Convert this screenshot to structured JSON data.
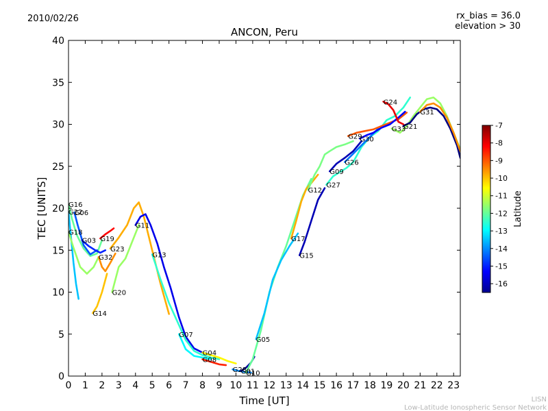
{
  "chart_data": {
    "type": "line",
    "title": "ANCON, Peru",
    "date": "2010/02/26",
    "annotation_lines": [
      "rx_bias = 36.0",
      "elevation > 30"
    ],
    "xlabel": "Time [UT]",
    "ylabel": "TEC [UNITS]",
    "xlim": [
      0,
      23.4
    ],
    "ylim": [
      0,
      40
    ],
    "xticks": [
      "0",
      "1",
      "2",
      "3",
      "4",
      "5",
      "6",
      "7",
      "8",
      "9",
      "10",
      "11",
      "12",
      "13",
      "14",
      "15",
      "16",
      "17",
      "18",
      "19",
      "20",
      "21",
      "22",
      "23"
    ],
    "yticks": [
      "0",
      "5",
      "10",
      "15",
      "20",
      "25",
      "30",
      "35",
      "40"
    ],
    "colorbar": {
      "label": "Latitude",
      "min": -16.5,
      "max": -7,
      "ticks": [
        "-7",
        "-8",
        "-9",
        "-10",
        "-11",
        "-12",
        "-13",
        "-14",
        "-15",
        "-16"
      ]
    },
    "footer": [
      "LISN",
      "Low-Latitude Ionospheric Sensor Network"
    ],
    "series": [
      {
        "name": "G16",
        "lat": -12.0,
        "x": [
          0,
          0.2,
          0.5,
          0.9,
          1.3,
          1.7,
          2.0
        ],
        "y": [
          20.5,
          18.8,
          16.8,
          15.2,
          14.3,
          14.6,
          16.2
        ]
      },
      {
        "name": "G22",
        "lat": -13.5,
        "x": [
          0,
          0.15,
          0.3,
          0.45,
          0.6
        ],
        "y": [
          19.6,
          16.5,
          13.5,
          11.0,
          9.2
        ]
      },
      {
        "name": "G06",
        "lat": -14.5,
        "x": [
          0.35,
          0.55,
          0.9,
          1.3,
          1.7
        ],
        "y": [
          19.5,
          18.0,
          15.6,
          14.5,
          15.0
        ]
      },
      {
        "name": "G18",
        "lat": -11.5,
        "x": [
          0,
          0.3,
          0.7,
          1.1,
          1.5,
          1.8
        ],
        "y": [
          17.2,
          15.3,
          13.0,
          12.2,
          13.0,
          14.2
        ]
      },
      {
        "name": "G03",
        "lat": -15.0,
        "x": [
          0.8,
          1.2,
          1.6,
          1.9,
          2.2
        ],
        "y": [
          16.2,
          15.5,
          15.0,
          14.7,
          15.0
        ]
      },
      {
        "name": "G19",
        "lat": -8.2,
        "x": [
          1.9,
          2.2,
          2.5,
          2.7
        ],
        "y": [
          16.4,
          16.9,
          17.3,
          17.6
        ]
      },
      {
        "name": "G32",
        "lat": -9.5,
        "x": [
          1.8,
          2.0,
          2.2,
          2.5,
          2.8
        ],
        "y": [
          14.2,
          13.0,
          12.5,
          13.5,
          14.6
        ]
      },
      {
        "name": "G14",
        "lat": -10.0,
        "x": [
          1.45,
          1.7,
          2.0,
          2.3
        ],
        "y": [
          7.5,
          8.3,
          10.0,
          12.2
        ]
      },
      {
        "name": "G20",
        "lat": -11.5,
        "x": [
          2.6,
          3.0,
          3.4,
          3.8,
          4.2
        ],
        "y": [
          10.0,
          13.0,
          14.0,
          16.0,
          18.0
        ]
      },
      {
        "name": "G23",
        "lat": -9.8,
        "x": [
          2.5,
          3.0,
          3.5,
          3.9,
          4.2,
          4.5,
          5.0,
          5.5,
          6.0
        ],
        "y": [
          15.2,
          16.5,
          18.0,
          20.0,
          20.7,
          19.0,
          15.0,
          11.0,
          7.4
        ]
      },
      {
        "name": "G11",
        "lat": -15.5,
        "x": [
          4.0,
          4.3,
          4.6,
          4.9,
          5.3,
          5.7,
          6.1,
          6.6,
          7.0,
          7.5,
          8.0,
          8.5
        ],
        "y": [
          18.0,
          19.0,
          19.3,
          18.0,
          15.8,
          13.0,
          10.5,
          7.0,
          4.7,
          3.3,
          2.8,
          2.5
        ]
      },
      {
        "name": "G13",
        "lat": -12.5,
        "x": [
          5.0,
          5.5,
          6.0,
          6.5,
          7.0,
          7.5,
          8.0,
          8.5,
          9.0
        ],
        "y": [
          14.5,
          11.5,
          8.7,
          6.5,
          4.3,
          3.0,
          2.5,
          2.2,
          2.0
        ]
      },
      {
        "name": "G07",
        "lat": -13.0,
        "x": [
          6.6,
          7.0,
          7.5,
          8.0,
          8.5
        ],
        "y": [
          5.0,
          3.2,
          2.4,
          2.2,
          2.0
        ]
      },
      {
        "name": "G04",
        "lat": -10.5,
        "x": [
          8.0,
          8.5,
          9.0,
          9.5,
          10.0
        ],
        "y": [
          2.8,
          2.5,
          2.2,
          1.8,
          1.5
        ]
      },
      {
        "name": "G08",
        "lat": -8.5,
        "x": [
          8.0,
          8.5,
          9.0,
          9.4
        ],
        "y": [
          2.0,
          1.7,
          1.4,
          1.3
        ]
      },
      {
        "name": "G28",
        "lat": -14.0,
        "x": [
          9.8,
          10.2,
          10.5,
          10.9
        ],
        "y": [
          0.8,
          0.6,
          0.5,
          0.4
        ]
      },
      {
        "name": "G01",
        "lat": -16.2,
        "x": [
          10.3,
          10.6,
          10.9,
          11.1
        ],
        "y": [
          0.6,
          1.0,
          1.6,
          2.3
        ]
      },
      {
        "name": "G10",
        "lat": -12.0,
        "x": [
          10.6,
          11.0,
          11.5,
          12.0,
          12.5,
          13.0,
          13.5,
          14.0,
          14.5
        ],
        "y": [
          0.4,
          2.0,
          5.5,
          10.0,
          13.0,
          15.5,
          18.5,
          21.5,
          23.5
        ]
      },
      {
        "name": "G05",
        "lat": -13.5,
        "x": [
          11.2,
          11.7,
          12.2,
          12.7,
          13.2,
          13.7
        ],
        "y": [
          4.4,
          7.5,
          11.5,
          13.8,
          15.5,
          17.0
        ]
      },
      {
        "name": "G17",
        "lat": -9.8,
        "x": [
          13.3,
          13.6,
          13.9,
          14.2,
          14.5,
          14.9
        ],
        "y": [
          16.4,
          18.5,
          20.8,
          22.3,
          23.0,
          24.0
        ]
      },
      {
        "name": "G15",
        "lat": -16.0,
        "x": [
          13.8,
          14.1,
          14.5,
          14.9,
          15.3
        ],
        "y": [
          14.4,
          16.0,
          18.5,
          21.0,
          22.4
        ]
      },
      {
        "name": "G12",
        "lat": -11.8,
        "x": [
          14.3,
          14.7,
          15.0,
          15.3,
          15.6,
          16.0,
          16.5,
          17.0
        ],
        "y": [
          22.2,
          24.0,
          25.0,
          26.4,
          26.8,
          27.3,
          27.6,
          28.0
        ]
      },
      {
        "name": "G27",
        "lat": -12.5,
        "x": [
          15.4,
          15.8,
          16.2,
          16.6,
          17.0,
          17.5,
          18.0,
          18.5,
          19.0,
          19.5,
          20.0,
          20.4
        ],
        "y": [
          22.8,
          23.8,
          24.3,
          24.8,
          25.5,
          27.3,
          28.5,
          29.2,
          30.5,
          31.0,
          32.0,
          33.2
        ]
      },
      {
        "name": "G09",
        "lat": -16.0,
        "x": [
          15.6,
          16.0,
          16.5,
          17.0,
          17.5
        ],
        "y": [
          24.4,
          25.3,
          26.0,
          26.8,
          28.0
        ]
      },
      {
        "name": "G26",
        "lat": -14.2,
        "x": [
          16.5,
          17.0,
          17.5,
          18.0,
          18.5
        ],
        "y": [
          25.5,
          26.5,
          27.5,
          28.5,
          29.5
        ]
      },
      {
        "name": "G29",
        "lat": -9.0,
        "x": [
          16.7,
          17.2,
          17.7,
          18.2,
          18.7,
          19.2,
          19.7,
          20.2
        ],
        "y": [
          28.6,
          29.0,
          29.2,
          29.4,
          29.8,
          30.2,
          30.6,
          31.4
        ]
      },
      {
        "name": "G30",
        "lat": -15.3,
        "x": [
          17.4,
          17.8,
          18.2,
          18.7,
          19.2,
          19.7,
          20.1
        ],
        "y": [
          28.3,
          28.7,
          29.0,
          29.6,
          30.0,
          30.8,
          31.5
        ]
      },
      {
        "name": "G24",
        "lat": -8.0,
        "x": [
          18.8,
          19.1,
          19.4,
          19.7,
          20.0
        ],
        "y": [
          32.7,
          32.4,
          31.7,
          30.3,
          30.0
        ]
      },
      {
        "name": "G33",
        "lat": -11.5,
        "x": [
          19.3,
          19.8,
          20.2,
          20.6,
          21.0,
          21.4,
          21.8,
          22.2,
          22.6,
          23.0,
          23.4
        ],
        "y": [
          29.5,
          29.0,
          29.8,
          31.0,
          32.0,
          33.0,
          33.2,
          32.5,
          31.0,
          29.0,
          27.0
        ]
      },
      {
        "name": "G21",
        "lat": -16.5,
        "x": [
          20.0,
          20.4,
          20.8,
          21.2,
          21.6,
          22.0,
          22.4,
          22.8,
          23.2,
          23.4
        ],
        "y": [
          29.8,
          30.2,
          31.2,
          31.8,
          32.0,
          31.8,
          31.0,
          29.5,
          27.5,
          26.0
        ]
      },
      {
        "name": "G31",
        "lat": -9.5,
        "x": [
          21.0,
          21.4,
          21.8,
          22.2,
          22.6,
          23.0,
          23.4
        ],
        "y": [
          31.5,
          32.3,
          32.5,
          32.0,
          30.8,
          29.0,
          26.8
        ]
      }
    ]
  }
}
